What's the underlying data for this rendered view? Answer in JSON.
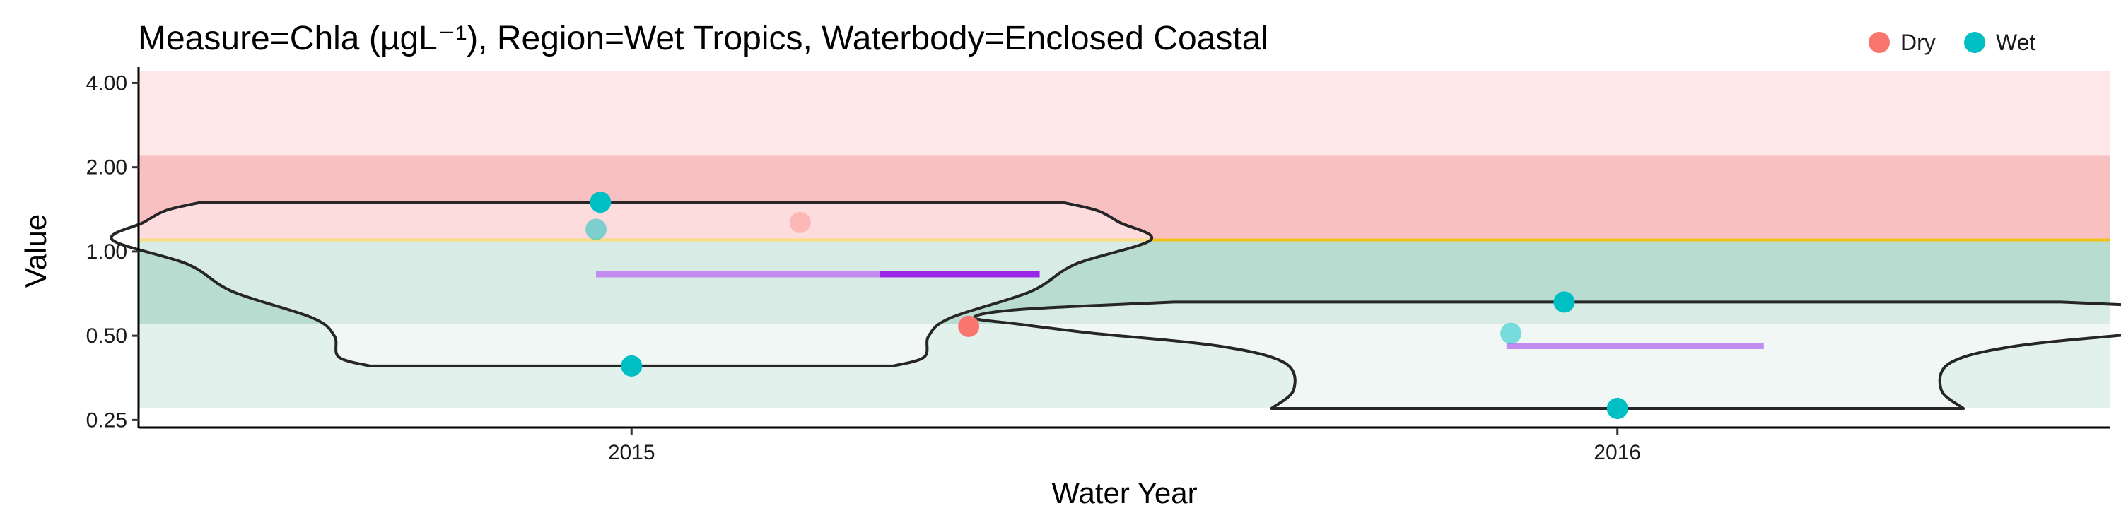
{
  "chart_data": {
    "type": "violin-jitter",
    "title": "Measure=Chla (µgL⁻¹), Region=Wet Tropics, Waterbody=Enclosed Coastal",
    "xlabel": "Water Year",
    "ylabel": "Value",
    "y_scale": "log2",
    "ylim": [
      0.235,
      4.3
    ],
    "y_ticks": [
      {
        "value": 0.25,
        "label": "0.25"
      },
      {
        "value": 0.5,
        "label": "0.50"
      },
      {
        "value": 1.0,
        "label": "1.00"
      },
      {
        "value": 2.0,
        "label": "2.00"
      },
      {
        "value": 4.0,
        "label": "4.00"
      }
    ],
    "categories": [
      "2015",
      "2016"
    ],
    "grid": false,
    "legend": {
      "placement": "top-right",
      "items": [
        {
          "name": "Dry",
          "color": "#F8766D"
        },
        {
          "name": "Wet",
          "color": "#00BFC4"
        }
      ]
    },
    "guideline": {
      "value": 1.1,
      "color": "#F2C21A"
    },
    "bands": [
      {
        "from": 0.275,
        "to": 0.55,
        "color": "#E3F1EC"
      },
      {
        "from": 0.55,
        "to": 1.1,
        "color": "#B8DDD0"
      },
      {
        "from": 1.1,
        "to": 2.2,
        "color": "#F9C0C2"
      },
      {
        "from": 2.2,
        "to": 4.4,
        "color": "#FDE7E8"
      }
    ],
    "violins": [
      {
        "category": "2015",
        "y_min": 0.39,
        "y_max": 1.5,
        "profile": [
          [
            0.39,
            0.59
          ],
          [
            0.42,
            0.66
          ],
          [
            0.5,
            0.67
          ],
          [
            0.58,
            0.72
          ],
          [
            0.72,
            0.9
          ],
          [
            0.9,
            1.0
          ],
          [
            1.1,
            1.17
          ],
          [
            1.27,
            1.1
          ],
          [
            1.4,
            1.05
          ],
          [
            1.5,
            0.97
          ]
        ]
      },
      {
        "category": "2016",
        "y_min": 0.275,
        "y_max": 0.66,
        "profile": [
          [
            0.275,
            0.78
          ],
          [
            0.32,
            0.73
          ],
          [
            0.4,
            0.75
          ],
          [
            0.46,
            0.9
          ],
          [
            0.51,
            1.18
          ],
          [
            0.55,
            1.35
          ],
          [
            0.58,
            1.45
          ],
          [
            0.62,
            1.35
          ],
          [
            0.66,
            1.0
          ]
        ]
      }
    ],
    "medians": [
      {
        "category": "2015",
        "value": 0.83,
        "segments": [
          {
            "from": -0.08,
            "to": 0.56,
            "color": "#C38CF0"
          },
          {
            "from": 0.56,
            "to": 0.92,
            "color": "#9B27E6"
          }
        ]
      },
      {
        "category": "2016",
        "value": 0.46,
        "segments": [
          {
            "from": -0.25,
            "to": 0.33,
            "color": "#C38CF0"
          }
        ]
      }
    ],
    "series": [
      {
        "name": "Dry",
        "color": "#F8766D",
        "points": [
          {
            "category": "2015",
            "dx": 0.38,
            "value": 1.27,
            "alpha": 0.35
          },
          {
            "category": "2015",
            "dx": 0.76,
            "value": 0.54,
            "alpha": 1.0
          }
        ]
      },
      {
        "name": "Wet",
        "color": "#00BFC4",
        "points": [
          {
            "category": "2015",
            "dx": -0.08,
            "value": 1.2,
            "alpha": 0.5
          },
          {
            "category": "2015",
            "dx": -0.07,
            "value": 1.5,
            "alpha": 1.0
          },
          {
            "category": "2015",
            "dx": 0.0,
            "value": 0.39,
            "alpha": 1.0
          },
          {
            "category": "2016",
            "dx": -0.24,
            "value": 0.51,
            "alpha": 0.5
          },
          {
            "category": "2016",
            "dx": -0.12,
            "value": 0.66,
            "alpha": 1.0
          },
          {
            "category": "2016",
            "dx": 0.0,
            "value": 0.275,
            "alpha": 1.0
          }
        ]
      }
    ]
  }
}
